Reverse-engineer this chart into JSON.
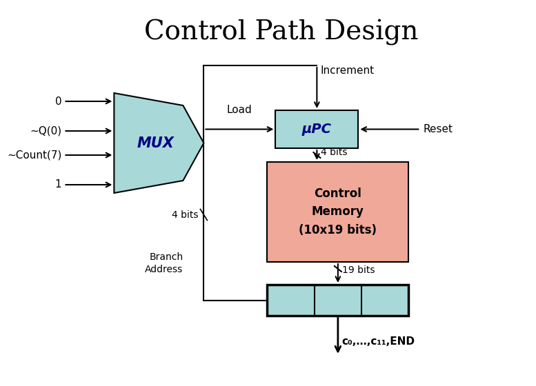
{
  "title": "Control Path Design",
  "title_fontsize": 28,
  "bg_color": "#ffffff",
  "mux_color": "#A8D8D8",
  "upc_color": "#A8D8D8",
  "cmem_color": "#F0A898",
  "output_color": "#A8D8D8",
  "mux_label": "MUX",
  "upc_label": "μPC",
  "cmem_label": "Control\nMemory\n(10x19 bits)",
  "inputs": [
    "0",
    "~Q(0)",
    "~Count(7)",
    "1"
  ],
  "increment": "Increment",
  "load": "Load",
  "reset": "Reset",
  "bits4": "4 bits",
  "bits4_left": "4 bits",
  "bits19": "19 bits",
  "branch": "Branch\nAddress",
  "output": "c₀,…,c₁₁,END"
}
